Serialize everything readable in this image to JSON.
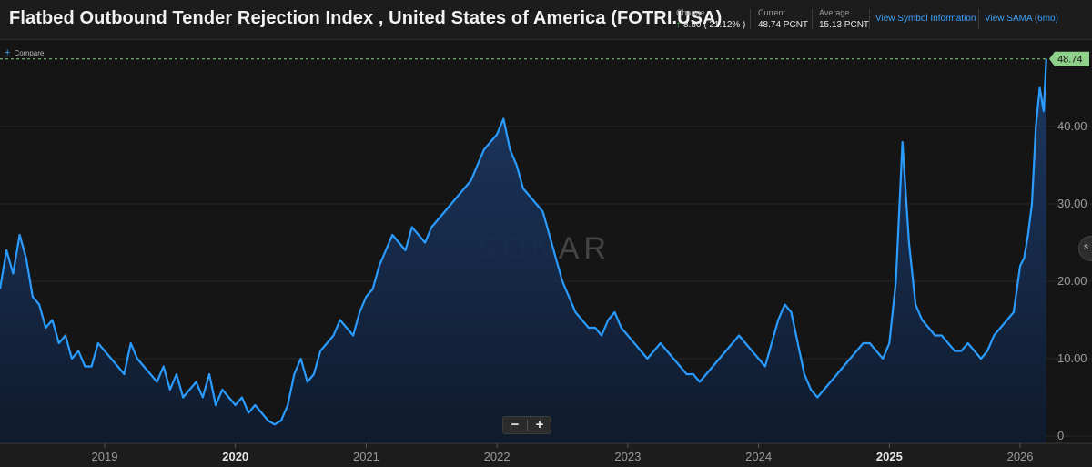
{
  "header": {
    "title": "Flatbed Outbound Tender Rejection Index , United States of America (FOTRI.USA)",
    "change_label": "Change",
    "change_value": "8.50 ( 21.12% )",
    "current_label": "Current",
    "current_value": "48.74 PCNT",
    "average_label": "Average",
    "average_value": "15.13 PCNT",
    "link_symbol_info": "View Symbol Information",
    "link_sama": "View SAMA (6mo)"
  },
  "compare_label": "Compare",
  "watermark": "SONAR",
  "zoom": {
    "minus": "−",
    "plus": "+"
  },
  "side_button_glyph": "s",
  "colors": {
    "line": "#2b9cff",
    "fill_top": "#1d3a66",
    "fill_bottom": "#0f1b2e",
    "current_tag": "#8fd18a",
    "background": "#151515"
  },
  "chart_data": {
    "type": "area",
    "title": "Flatbed Outbound Tender Rejection Index , United States of America (FOTRI.USA)",
    "xlabel": "",
    "ylabel": "PCNT",
    "ylim": [
      0,
      50
    ],
    "xlim": [
      2018.2,
      2026.25
    ],
    "y_ticks": [
      0,
      10,
      20,
      30,
      40
    ],
    "y_tick_labels": [
      "0",
      "10.00",
      "20.00",
      "30.00",
      "40.00"
    ],
    "x_ticks": [
      2019,
      2020,
      2021,
      2022,
      2023,
      2024,
      2025,
      2026
    ],
    "x_tick_labels": [
      "2019",
      "2020",
      "2021",
      "2022",
      "2023",
      "2024",
      "2025",
      "2026"
    ],
    "current_value": 48.74,
    "current_label": "48.74",
    "x": [
      2018.2,
      2018.25,
      2018.3,
      2018.35,
      2018.4,
      2018.45,
      2018.5,
      2018.55,
      2018.6,
      2018.65,
      2018.7,
      2018.75,
      2018.8,
      2018.85,
      2018.9,
      2018.95,
      2019.0,
      2019.05,
      2019.1,
      2019.15,
      2019.2,
      2019.25,
      2019.3,
      2019.35,
      2019.4,
      2019.45,
      2019.5,
      2019.55,
      2019.6,
      2019.65,
      2019.7,
      2019.75,
      2019.8,
      2019.85,
      2019.9,
      2019.95,
      2020.0,
      2020.05,
      2020.1,
      2020.15,
      2020.2,
      2020.25,
      2020.3,
      2020.35,
      2020.4,
      2020.45,
      2020.5,
      2020.55,
      2020.6,
      2020.65,
      2020.7,
      2020.75,
      2020.8,
      2020.85,
      2020.9,
      2020.95,
      2021.0,
      2021.05,
      2021.1,
      2021.15,
      2021.2,
      2021.25,
      2021.3,
      2021.35,
      2021.4,
      2021.45,
      2021.5,
      2021.55,
      2021.6,
      2021.65,
      2021.7,
      2021.75,
      2021.8,
      2021.85,
      2021.9,
      2021.95,
      2022.0,
      2022.05,
      2022.1,
      2022.15,
      2022.2,
      2022.25,
      2022.3,
      2022.35,
      2022.4,
      2022.45,
      2022.5,
      2022.55,
      2022.6,
      2022.65,
      2022.7,
      2022.75,
      2022.8,
      2022.85,
      2022.9,
      2022.95,
      2023.0,
      2023.05,
      2023.1,
      2023.15,
      2023.2,
      2023.25,
      2023.3,
      2023.35,
      2023.4,
      2023.45,
      2023.5,
      2023.55,
      2023.6,
      2023.65,
      2023.7,
      2023.75,
      2023.8,
      2023.85,
      2023.9,
      2023.95,
      2024.0,
      2024.05,
      2024.1,
      2024.15,
      2024.2,
      2024.25,
      2024.3,
      2024.35,
      2024.4,
      2024.45,
      2024.5,
      2024.55,
      2024.6,
      2024.65,
      2024.7,
      2024.75,
      2024.8,
      2024.85,
      2024.9,
      2024.95,
      2025.0,
      2025.05,
      2025.1,
      2025.15,
      2025.2,
      2025.25,
      2025.3,
      2025.35,
      2025.4,
      2025.45,
      2025.5,
      2025.55,
      2025.6,
      2025.65,
      2025.7,
      2025.75,
      2025.8,
      2025.85,
      2025.9,
      2025.95,
      2026.0,
      2026.03,
      2026.06,
      2026.09,
      2026.12,
      2026.15,
      2026.18,
      2026.2
    ],
    "y": [
      19,
      24,
      21,
      26,
      23,
      18,
      17,
      14,
      15,
      12,
      13,
      10,
      11,
      9,
      9,
      12,
      11,
      10,
      9,
      8,
      12,
      10,
      9,
      8,
      7,
      9,
      6,
      8,
      5,
      6,
      7,
      5,
      8,
      4,
      6,
      5,
      4,
      5,
      3,
      4,
      3,
      2,
      1.5,
      2,
      4,
      8,
      10,
      7,
      8,
      11,
      12,
      13,
      15,
      14,
      13,
      16,
      18,
      19,
      22,
      24,
      26,
      25,
      24,
      27,
      26,
      25,
      27,
      28,
      29,
      30,
      31,
      32,
      33,
      35,
      37,
      38,
      39,
      41,
      37,
      35,
      32,
      31,
      30,
      29,
      26,
      23,
      20,
      18,
      16,
      15,
      14,
      14,
      13,
      15,
      16,
      14,
      13,
      12,
      11,
      10,
      11,
      12,
      11,
      10,
      9,
      8,
      8,
      7,
      8,
      9,
      10,
      11,
      12,
      13,
      12,
      11,
      10,
      9,
      12,
      15,
      17,
      16,
      12,
      8,
      6,
      5,
      6,
      7,
      8,
      9,
      10,
      11,
      12,
      12,
      11,
      10,
      12,
      20,
      38,
      25,
      17,
      15,
      14,
      13,
      13,
      12,
      11,
      11,
      12,
      11,
      10,
      11,
      13,
      14,
      15,
      16,
      22,
      23,
      26,
      30,
      40,
      45,
      42,
      48.74
    ]
  }
}
